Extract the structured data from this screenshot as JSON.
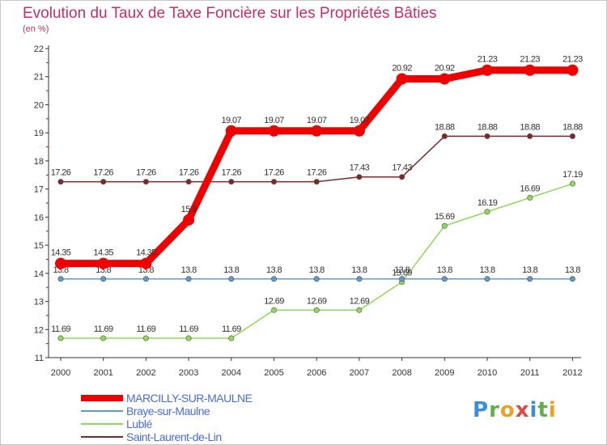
{
  "title": "Evolution du Taux de Taxe Foncière sur les Propriétés Bâties",
  "subtitle": "(en %)",
  "chart_data": {
    "type": "line",
    "title": "Evolution du Taux de Taxe Foncière sur les Propriétés Bâties",
    "ylabel": "(en %)",
    "xlabel": "",
    "categories": [
      "2000",
      "2001",
      "2002",
      "2003",
      "2004",
      "2005",
      "2006",
      "2007",
      "2008",
      "2009",
      "2010",
      "2011",
      "2012"
    ],
    "ylim": [
      11,
      22
    ],
    "yticks": [
      11,
      12,
      13,
      14,
      15,
      16,
      17,
      18,
      19,
      20,
      21,
      22
    ],
    "grid": false,
    "legend_position": "bottom-left",
    "series": [
      {
        "name": "Saint-Laurent-de-Lin",
        "color": "#7a2a2a",
        "values": [
          17.26,
          17.26,
          17.26,
          17.26,
          17.26,
          17.26,
          17.26,
          17.43,
          17.43,
          18.88,
          18.88,
          18.88,
          18.88
        ],
        "labels": [
          "17.26",
          "17.26",
          "17.26",
          "17.26",
          "17.26",
          "17.26",
          "17.26",
          "17.43",
          "17.43",
          "18.88",
          "18.88",
          "18.88",
          "18.88"
        ]
      },
      {
        "name": "Lublé",
        "color": "#90d858",
        "values": [
          11.69,
          11.69,
          11.69,
          11.69,
          11.69,
          12.69,
          12.69,
          12.69,
          13.69,
          15.69,
          16.19,
          16.69,
          17.19
        ],
        "labels": [
          "11.69",
          "11.69",
          "11.69",
          "11.69",
          "11.69",
          "12.69",
          "12.69",
          "12.69",
          "13.69",
          "15.69",
          "16.19",
          "16.69",
          "17.19"
        ]
      },
      {
        "name": "Braye-sur-Maulne",
        "color": "#5c9ccc",
        "values": [
          13.8,
          13.8,
          13.8,
          13.8,
          13.8,
          13.8,
          13.8,
          13.8,
          13.8,
          13.8,
          13.8,
          13.8,
          13.8
        ],
        "labels": [
          "13.8",
          "13.8",
          "13.8",
          "13.8",
          "13.8",
          "13.8",
          "13.8",
          "13.8",
          "13.8",
          "13.8",
          "13.8",
          "13.8",
          "13.8"
        ]
      },
      {
        "name": "MARCILLY-SUR-MAULNE",
        "color": "#ee0000",
        "values": [
          14.35,
          14.35,
          14.35,
          15.9,
          19.07,
          19.07,
          19.07,
          19.07,
          20.92,
          20.92,
          21.23,
          21.23,
          21.23
        ],
        "labels": [
          "14.35",
          "14.35",
          "14.35",
          "15.9",
          "19.07",
          "19.07",
          "19.07",
          "19.07",
          "20.92",
          "20.92",
          "21.23",
          "21.23",
          "21.23"
        ]
      }
    ]
  },
  "legend": [
    {
      "label": "MARCILLY-SUR-MAULNE",
      "color": "#ee0000"
    },
    {
      "label": "Braye-sur-Maulne",
      "color": "#5c9ccc"
    },
    {
      "label": "Lublé",
      "color": "#90d858"
    },
    {
      "label": "Saint-Laurent-de-Lin",
      "color": "#7a2a2a"
    }
  ],
  "logo": {
    "text": "Proxiti"
  }
}
